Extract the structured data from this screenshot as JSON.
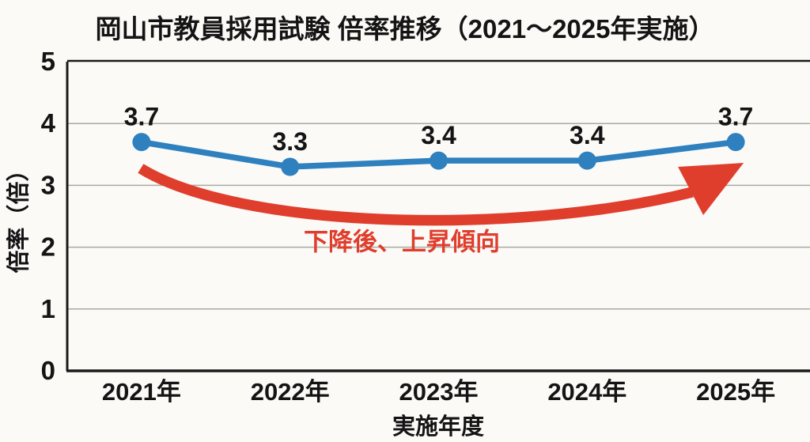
{
  "chart_data": {
    "type": "line",
    "title": "岡山市教員採用試験 倍率推移（2021～2025年実施）",
    "xlabel": "実施年度",
    "ylabel": "倍率（倍）",
    "categories": [
      "2021年",
      "2022年",
      "2023年",
      "2024年",
      "2025年"
    ],
    "series": [
      {
        "name": "倍率",
        "values": [
          3.7,
          3.3,
          3.4,
          3.4,
          3.7
        ]
      }
    ],
    "data_labels": [
      "3.7",
      "3.3",
      "3.4",
      "3.4",
      "3.7"
    ],
    "ylim": [
      0,
      5
    ],
    "yticks": [
      0,
      1,
      2,
      3,
      4,
      5
    ],
    "grid": "horizontal",
    "legend": "none",
    "annotation": "下降後、上昇傾向",
    "colors": {
      "line": "#2E80BE",
      "marker": "#2E80BE",
      "arrow": "#E03E2D",
      "annotation_text": "#E03E2D",
      "text": "#141414",
      "gridline": "#A9A9A3",
      "axis_border": "#1A1A1A",
      "background": "#FBFAF7"
    }
  }
}
